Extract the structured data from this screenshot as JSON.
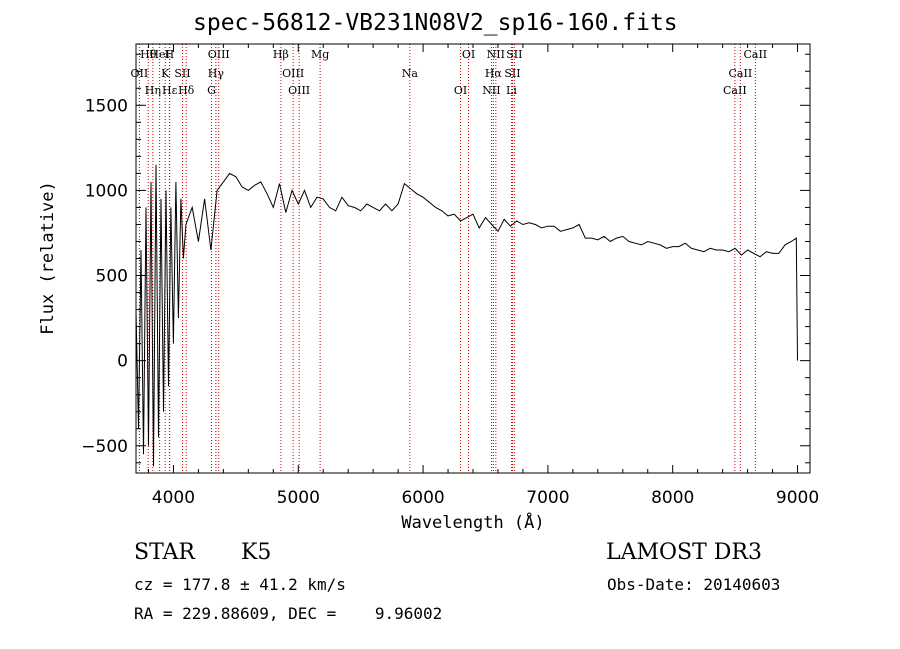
{
  "chart_data": {
    "type": "line",
    "title": "spec-56812-VB231N08V2_sp16-160.fits",
    "xlabel": "Wavelength (Å)",
    "ylabel": "Flux (relative)",
    "xlim": [
      3700,
      9100
    ],
    "ylim": [
      -660,
      1860
    ],
    "xticks": [
      4000,
      5000,
      6000,
      7000,
      8000,
      9000
    ],
    "yticks": [
      -500,
      0,
      500,
      1000,
      1500
    ],
    "xtick_labels": [
      "4000",
      "5000",
      "6000",
      "7000",
      "8000",
      "9000"
    ],
    "ytick_labels": [
      "−500",
      "0",
      "500",
      "1000",
      "1500"
    ],
    "series": [
      {
        "name": "flux",
        "x": [
          3700,
          3720,
          3740,
          3760,
          3780,
          3800,
          3820,
          3840,
          3860,
          3880,
          3900,
          3920,
          3940,
          3960,
          3980,
          4000,
          4020,
          4040,
          4060,
          4080,
          4100,
          4150,
          4200,
          4250,
          4300,
          4350,
          4400,
          4450,
          4500,
          4550,
          4600,
          4650,
          4700,
          4750,
          4800,
          4850,
          4900,
          4950,
          5000,
          5050,
          5100,
          5150,
          5200,
          5250,
          5300,
          5350,
          5400,
          5450,
          5500,
          5550,
          5600,
          5650,
          5700,
          5750,
          5800,
          5850,
          5900,
          5950,
          6000,
          6050,
          6100,
          6150,
          6200,
          6250,
          6300,
          6350,
          6400,
          6450,
          6500,
          6550,
          6600,
          6650,
          6700,
          6750,
          6800,
          6850,
          6900,
          6950,
          7000,
          7050,
          7100,
          7150,
          7200,
          7250,
          7300,
          7350,
          7400,
          7450,
          7500,
          7550,
          7600,
          7650,
          7700,
          7750,
          7800,
          7850,
          7900,
          7950,
          8000,
          8050,
          8100,
          8150,
          8200,
          8250,
          8300,
          8350,
          8400,
          8450,
          8500,
          8550,
          8600,
          8650,
          8700,
          8750,
          8800,
          8850,
          8900,
          8950,
          8990,
          9000
        ],
        "values": [
          300,
          -400,
          650,
          -550,
          900,
          -500,
          1050,
          -620,
          1150,
          -450,
          950,
          -300,
          1000,
          -150,
          900,
          100,
          1050,
          250,
          950,
          600,
          800,
          900,
          700,
          950,
          650,
          1000,
          1050,
          1100,
          1080,
          1020,
          1000,
          1030,
          1050,
          980,
          900,
          1040,
          870,
          1000,
          920,
          1000,
          900,
          960,
          950,
          900,
          880,
          960,
          910,
          900,
          880,
          920,
          900,
          880,
          920,
          880,
          920,
          1040,
          1010,
          980,
          960,
          930,
          900,
          880,
          850,
          860,
          820,
          840,
          860,
          780,
          840,
          800,
          760,
          830,
          790,
          820,
          800,
          810,
          800,
          780,
          790,
          790,
          760,
          770,
          780,
          800,
          720,
          720,
          710,
          730,
          700,
          720,
          730,
          700,
          690,
          680,
          700,
          690,
          680,
          660,
          670,
          670,
          690,
          660,
          650,
          640,
          660,
          650,
          650,
          640,
          660,
          620,
          650,
          630,
          610,
          640,
          630,
          630,
          680,
          700,
          720,
          0
        ]
      }
    ],
    "spectral_lines": [
      {
        "name": "Hθ",
        "wavelength": 3798
      },
      {
        "name": "OII",
        "wavelength": 3727
      },
      {
        "name": "Hη",
        "wavelength": 3835
      },
      {
        "name": "HeI",
        "wavelength": 3889
      },
      {
        "name": "K",
        "wavelength": 3934
      },
      {
        "name": "Hε",
        "wavelength": 3970
      },
      {
        "name": "H",
        "wavelength": 3968
      },
      {
        "name": "SII",
        "wavelength": 4072
      },
      {
        "name": "Hδ",
        "wavelength": 4102
      },
      {
        "name": "OIII",
        "wavelength": 4363
      },
      {
        "name": "Hγ",
        "wavelength": 4340
      },
      {
        "name": "G",
        "wavelength": 4305
      },
      {
        "name": "Hβ",
        "wavelength": 4861
      },
      {
        "name": "OIII",
        "wavelength": 4959
      },
      {
        "name": "OIII",
        "wavelength": 5007
      },
      {
        "name": "Mg",
        "wavelength": 5175
      },
      {
        "name": "Na",
        "wavelength": 5894
      },
      {
        "name": "OI",
        "wavelength": 6300
      },
      {
        "name": "OI",
        "wavelength": 6364
      },
      {
        "name": "Hα",
        "wavelength": 6563
      },
      {
        "name": "NII",
        "wavelength": 6548
      },
      {
        "name": "NII",
        "wavelength": 6583
      },
      {
        "name": "SII",
        "wavelength": 6716
      },
      {
        "name": "Li",
        "wavelength": 6708
      },
      {
        "name": "SII",
        "wavelength": 6731
      },
      {
        "name": "CaII",
        "wavelength": 8542
      },
      {
        "name": "CaII",
        "wavelength": 8498
      },
      {
        "name": "CaII",
        "wavelength": 8662
      }
    ]
  },
  "info": {
    "class": "STAR",
    "subclass": "K5",
    "survey": "LAMOST DR3",
    "cz": "cz = 177.8 ± 41.2 km/s",
    "obs_date": "Obs-Date: 20140603",
    "coords": "RA = 229.88609, DEC =    9.96002"
  },
  "colors": {
    "line_marker": "#cc0000",
    "spectrum": "#000000",
    "axes": "#000000"
  }
}
